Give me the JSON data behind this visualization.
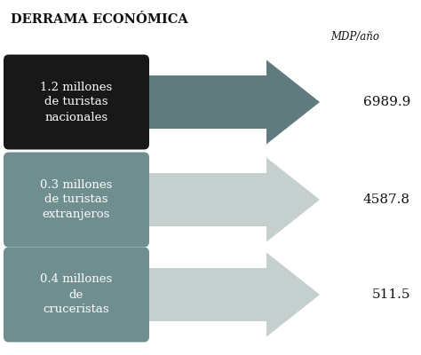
{
  "title": "DERRAMA ECONÓMICA",
  "unit_label": "MDP/año",
  "rows": [
    {
      "label": "1.2 millones\nde turistas\nnacionales",
      "value": "6989.9",
      "box_color": "#181818",
      "arrow_color": "#607b7d",
      "text_color": "#ffffff"
    },
    {
      "label": "0.3 millones\nde turistas\nextranjeros",
      "value": "4587.8",
      "box_color": "#6e8e8f",
      "arrow_color": "#c5d0ce",
      "text_color": "#ffffff"
    },
    {
      "label": "0.4 millones\nde\ncruceristas",
      "value": "511.5",
      "box_color": "#6e8e8f",
      "arrow_color": "#c5d0ce",
      "text_color": "#ffffff"
    }
  ],
  "bg_color": "#ffffff",
  "title_fontsize": 10.5,
  "label_fontsize": 9.5,
  "value_fontsize": 11
}
